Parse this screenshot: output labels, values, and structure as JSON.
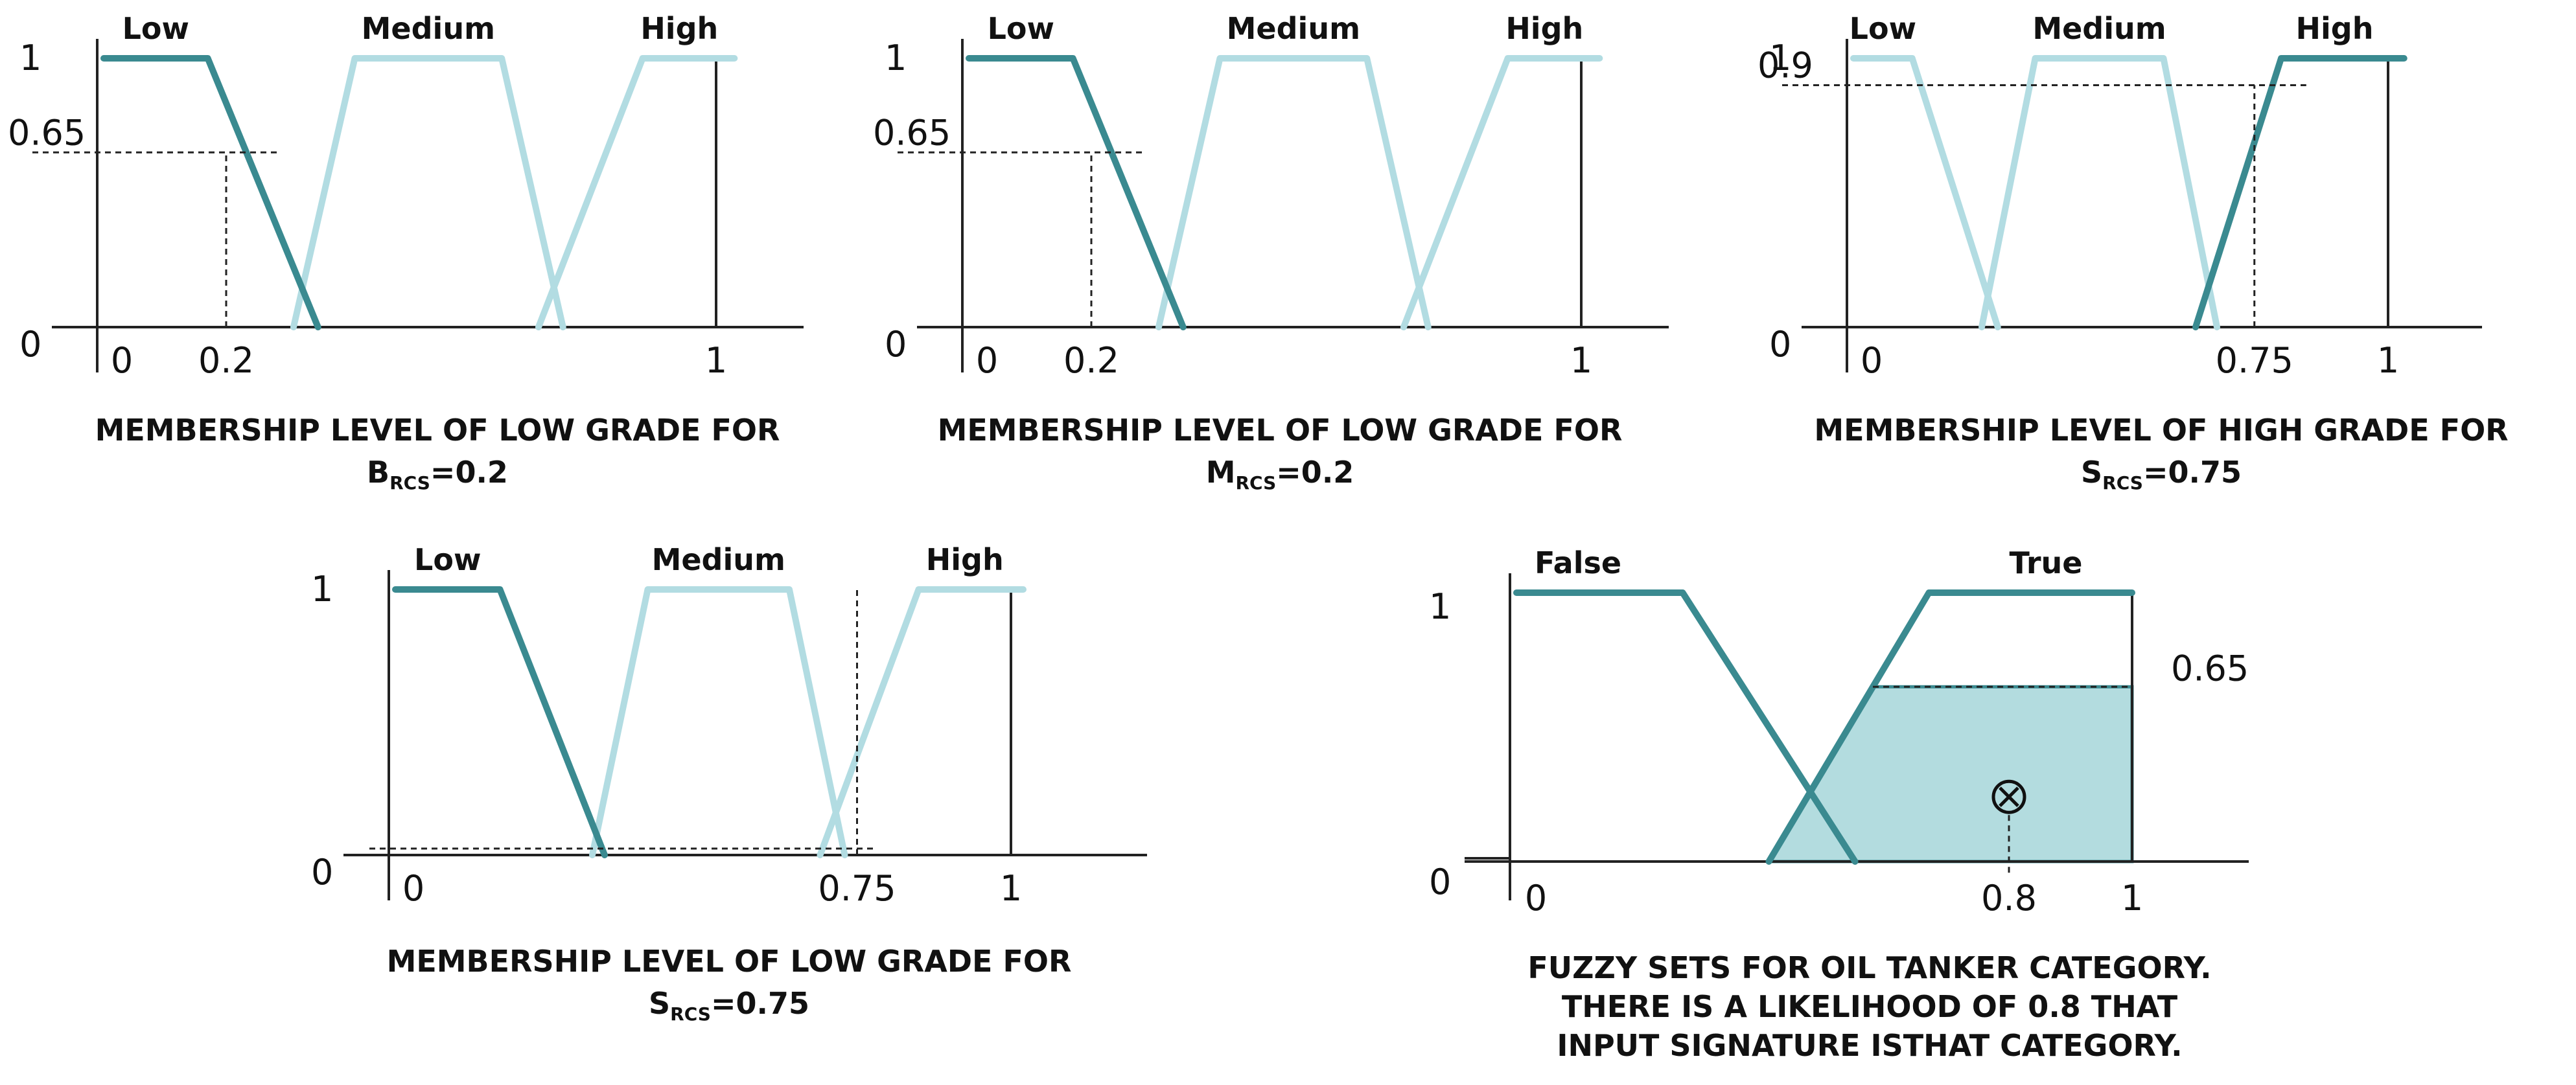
{
  "colors": {
    "active": "#3a8a90",
    "faded": "#b2dce2",
    "fill": "#b3dcdf"
  },
  "panels": [
    {
      "sets": [
        {
          "label": "Low",
          "pts": [
            [
              0,
              1
            ],
            [
              0.17,
              1
            ],
            [
              0.35,
              0
            ]
          ],
          "active": true
        },
        {
          "label": "Medium",
          "pts": [
            [
              0.31,
              0
            ],
            [
              0.41,
              1
            ],
            [
              0.65,
              1
            ],
            [
              0.75,
              0
            ]
          ],
          "active": false
        },
        {
          "label": "High",
          "pts": [
            [
              0.71,
              0
            ],
            [
              0.88,
              1
            ],
            [
              1.03,
              1
            ]
          ],
          "active": false
        }
      ],
      "yticks": [
        {
          "v": 1,
          "label": "1"
        },
        {
          "v": 0.65,
          "label": "0.65"
        },
        {
          "v": 0,
          "label": "0"
        }
      ],
      "xticks": [
        {
          "v": 0,
          "label": "0"
        },
        {
          "v": 0.2,
          "label": "0.2"
        },
        {
          "v": 1,
          "label": "1"
        }
      ],
      "input": 0.2,
      "level": 0.65,
      "caption": "MEMBERSHIP LEVEL OF LOW GRADE FOR",
      "var": "B",
      "var_sub": "RCS",
      "var_value": "=0.2"
    },
    {
      "sets": [
        {
          "label": "Low",
          "pts": [
            [
              0,
              1
            ],
            [
              0.17,
              1
            ],
            [
              0.35,
              0
            ]
          ],
          "active": true
        },
        {
          "label": "Medium",
          "pts": [
            [
              0.31,
              0
            ],
            [
              0.41,
              1
            ],
            [
              0.65,
              1
            ],
            [
              0.75,
              0
            ]
          ],
          "active": false
        },
        {
          "label": "High",
          "pts": [
            [
              0.71,
              0
            ],
            [
              0.88,
              1
            ],
            [
              1.03,
              1
            ]
          ],
          "active": false
        }
      ],
      "yticks": [
        {
          "v": 1,
          "label": "1"
        },
        {
          "v": 0.65,
          "label": "0.65"
        },
        {
          "v": 0,
          "label": "0"
        }
      ],
      "xticks": [
        {
          "v": 0,
          "label": "0"
        },
        {
          "v": 0.2,
          "label": "0.2"
        },
        {
          "v": 1,
          "label": "1"
        }
      ],
      "input": 0.2,
      "level": 0.65,
      "caption": "MEMBERSHIP LEVEL OF LOW GRADE FOR",
      "var": "M",
      "var_sub": "RCS",
      "var_value": "=0.2"
    },
    {
      "sets": [
        {
          "label": "Low",
          "pts": [
            [
              0,
              1
            ],
            [
              0.11,
              1
            ],
            [
              0.27,
              0
            ]
          ],
          "active": false
        },
        {
          "label": "Medium",
          "pts": [
            [
              0.24,
              0
            ],
            [
              0.34,
              1
            ],
            [
              0.58,
              1
            ],
            [
              0.68,
              0
            ]
          ],
          "active": false
        },
        {
          "label": "High",
          "pts": [
            [
              0.64,
              0
            ],
            [
              0.8,
              1
            ],
            [
              1.03,
              1
            ]
          ],
          "active": true
        }
      ],
      "yticks": [
        {
          "v": 1,
          "label": "1"
        },
        {
          "v": 0.9,
          "label": "0.9"
        },
        {
          "v": 0,
          "label": "0"
        }
      ],
      "xticks": [
        {
          "v": 0,
          "label": "0"
        },
        {
          "v": 0.75,
          "label": "0.75"
        },
        {
          "v": 1,
          "label": "1"
        }
      ],
      "input": 0.75,
      "level": 0.9,
      "caption": "MEMBERSHIP LEVEL OF HIGH GRADE FOR",
      "var": "S",
      "var_sub": "RCS",
      "var_value": "=0.75"
    },
    {
      "sets": [
        {
          "label": "Low",
          "pts": [
            [
              0,
              1
            ],
            [
              0.17,
              1
            ],
            [
              0.34,
              0
            ]
          ],
          "active": true
        },
        {
          "label": "Medium",
          "pts": [
            [
              0.32,
              0
            ],
            [
              0.41,
              1
            ],
            [
              0.64,
              1
            ],
            [
              0.73,
              0
            ]
          ],
          "active": false
        },
        {
          "label": "High",
          "pts": [
            [
              0.69,
              0
            ],
            [
              0.85,
              1
            ],
            [
              1.02,
              1
            ]
          ],
          "active": false
        }
      ],
      "yticks": [
        {
          "v": 1,
          "label": "1"
        },
        {
          "v": 0,
          "label": "0"
        }
      ],
      "xticks": [
        {
          "v": 0,
          "label": "0"
        },
        {
          "v": 0.75,
          "label": "0.75"
        },
        {
          "v": 1,
          "label": "1"
        }
      ],
      "input": 0.75,
      "level": 0,
      "caption": "MEMBERSHIP LEVEL OF LOW GRADE FOR",
      "var": "S",
      "var_sub": "RCS",
      "var_value": "=0.75"
    }
  ],
  "tanker": {
    "sets": [
      {
        "label": "False",
        "pts": [
          [
            0,
            1
          ],
          [
            0.27,
            1
          ],
          [
            0.55,
            0
          ]
        ],
        "active": true
      },
      {
        "label": "True",
        "pts": [
          [
            0.41,
            0
          ],
          [
            0.67,
            1
          ],
          [
            1,
            1
          ]
        ],
        "active": true
      }
    ],
    "yticks": [
      {
        "v": 1,
        "label": "1"
      },
      {
        "v": 0,
        "label": "0"
      }
    ],
    "xticks": [
      {
        "v": 0,
        "label": "0"
      },
      {
        "v": 0.8,
        "label": "0.8"
      },
      {
        "v": 1,
        "label": "1"
      }
    ],
    "level": 0.65,
    "level_label": "0.65",
    "centroid": 0.8,
    "caption_lines": [
      "FUZZY SETS FOR OIL TANKER CATEGORY.",
      "THERE IS A LIKELIHOOD OF 0.8 THAT",
      "INPUT SIGNATURE ISTHAT CATEGORY."
    ]
  }
}
